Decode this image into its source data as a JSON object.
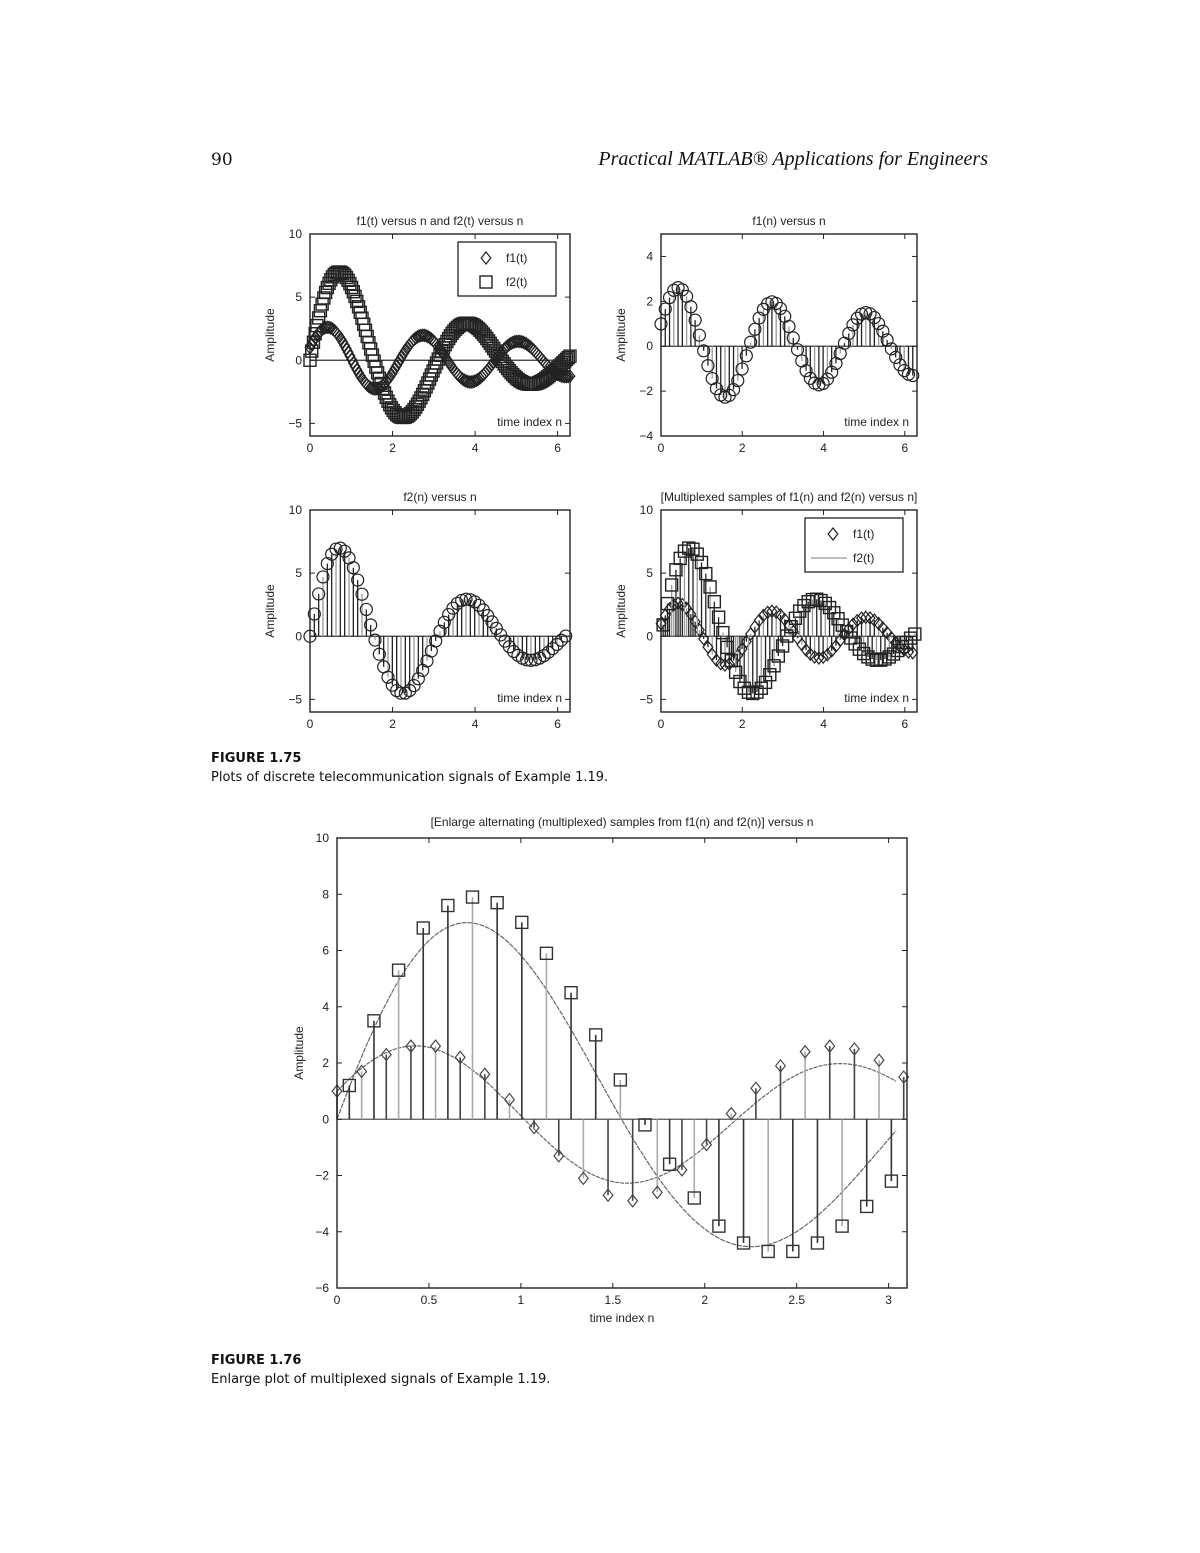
{
  "header": {
    "page_number": "90",
    "running_title": "Practical MATLAB® Applications for Engineers"
  },
  "figure_175": {
    "label": "FIGURE 1.75",
    "caption": "Plots of discrete telecommunication signals of Example 1.19."
  },
  "figure_176": {
    "label": "FIGURE 1.76",
    "caption": "Enlarge plot of multiplexed signals of Example 1.19."
  },
  "chart_data": [
    {
      "id": "plot1",
      "type": "scatter",
      "title": "f1(t) versus n and f2(t) versus n",
      "xlabel": "",
      "ylabel": "Amplitude",
      "annotation": "time index n",
      "xlim": [
        0,
        6.3
      ],
      "ylim": [
        -6,
        10
      ],
      "xticks": [
        0,
        2,
        4,
        6
      ],
      "yticks": [
        -5,
        0,
        5,
        10
      ],
      "legend": [
        {
          "label": "f1(t)",
          "marker": "diamond"
        },
        {
          "label": "f2(t)",
          "marker": "square"
        }
      ],
      "series": [
        "f1",
        "f2"
      ],
      "markers": [
        "diamond",
        "square"
      ],
      "stem": false
    },
    {
      "id": "plot2",
      "type": "stem",
      "title": "f1(n) versus n",
      "xlabel": "",
      "ylabel": "Amplitude",
      "annotation": "time index n",
      "xlim": [
        0,
        6.3
      ],
      "ylim": [
        -4,
        5
      ],
      "xticks": [
        0,
        2,
        4,
        6
      ],
      "yticks": [
        -4,
        -2,
        0,
        2,
        4
      ],
      "legend": [],
      "series": [
        "f1"
      ],
      "markers": [
        "circle"
      ],
      "stem": true
    },
    {
      "id": "plot3",
      "type": "stem",
      "title": "f2(n) versus n",
      "xlabel": "",
      "ylabel": "Amplitude",
      "annotation": "time index n",
      "xlim": [
        0,
        6.3
      ],
      "ylim": [
        -6,
        10
      ],
      "xticks": [
        0,
        2,
        4,
        6
      ],
      "yticks": [
        -5,
        0,
        5,
        10
      ],
      "legend": [],
      "series": [
        "f2"
      ],
      "markers": [
        "circle"
      ],
      "stem": true
    },
    {
      "id": "plot4",
      "type": "stem",
      "title": "[Multiplexed samples of f1(n) and f2(n) versus n]",
      "xlabel": "",
      "ylabel": "Amplitude",
      "annotation": "time index n",
      "xlim": [
        0,
        6.3
      ],
      "ylim": [
        -6,
        10
      ],
      "xticks": [
        0,
        2,
        4,
        6
      ],
      "yticks": [
        -5,
        0,
        5,
        10
      ],
      "legend": [
        {
          "label": "f1(t)",
          "marker": "diamond"
        },
        {
          "label": "f2(t)",
          "marker": "line"
        }
      ],
      "series": [
        "f1",
        "f2"
      ],
      "markers": [
        "diamond",
        "square"
      ],
      "stem": true
    },
    {
      "id": "plot5",
      "type": "stem",
      "title": "[Enlarge alternating (multiplexed) samples from f1(n) and f2(n)] versus n",
      "xlabel": "time index n",
      "ylabel": "Amplitude",
      "annotation": "",
      "xlim": [
        0,
        3.1
      ],
      "ylim": [
        -6,
        10
      ],
      "xticks": [
        0,
        0.5,
        1,
        1.5,
        2,
        2.5,
        3
      ],
      "yticks": [
        -6,
        -4,
        -2,
        0,
        2,
        4,
        6,
        8,
        10
      ],
      "legend": [],
      "series": [
        "f1",
        "f2"
      ],
      "markers": [
        "diamond",
        "square"
      ],
      "stem": true,
      "sample_points": {
        "n_f1": [
          0,
          0.134,
          0.268,
          0.402,
          0.536,
          0.67,
          0.804,
          0.938,
          1.072,
          1.206,
          1.34,
          1.474,
          1.608,
          1.742,
          1.876,
          2.01,
          2.144,
          2.278,
          2.412,
          2.546,
          2.68,
          2.814,
          2.948,
          3.082
        ],
        "f1": [
          1.0,
          1.7,
          2.3,
          2.6,
          2.6,
          2.2,
          1.6,
          0.7,
          -0.3,
          -1.3,
          -2.1,
          -2.7,
          -2.9,
          -2.6,
          -1.8,
          -0.9,
          0.2,
          1.1,
          1.9,
          2.4,
          2.6,
          2.5,
          2.1,
          1.5
        ],
        "n_f2": [
          0.067,
          0.201,
          0.335,
          0.469,
          0.603,
          0.737,
          0.871,
          1.005,
          1.139,
          1.273,
          1.407,
          1.541,
          1.675,
          1.809,
          1.943,
          2.077,
          2.211,
          2.345,
          2.479,
          2.613,
          2.747,
          2.881,
          3.015
        ],
        "f2": [
          1.2,
          3.5,
          5.3,
          6.8,
          7.6,
          7.9,
          7.7,
          7.0,
          5.9,
          4.5,
          3.0,
          1.4,
          -0.2,
          -1.6,
          -2.8,
          -3.8,
          -4.4,
          -4.7,
          -4.7,
          -4.4,
          -3.8,
          -3.1,
          -2.2
        ]
      }
    }
  ],
  "signals": {
    "f1_formula": "approx 2.75*exp(-0.12n)*sin(2.72n+0.37)",
    "f2_formula": "approx 8.6*exp(-0.28n)*sin(2.03n)"
  }
}
